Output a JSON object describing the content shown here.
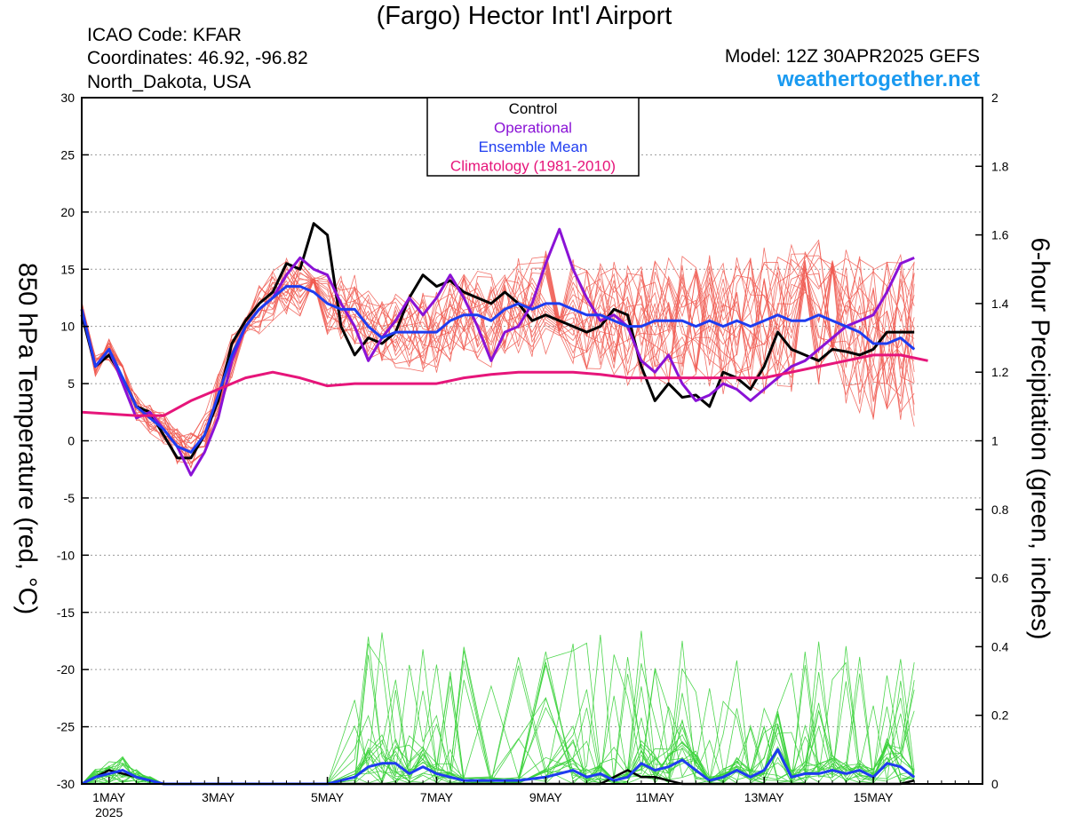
{
  "header": {
    "title": "(Fargo) Hector Int'l Airport",
    "icao": "ICAO Code: KFAR",
    "coords": "Coordinates: 46.92, -96.82",
    "region": "North_Dakota, USA",
    "model": "Model: 12Z 30APR2025 GEFS",
    "site": "weathertogether.net"
  },
  "colors": {
    "control": "#000000",
    "operational": "#8a12d6",
    "ensemble_mean": "#1e3cf0",
    "climatology": "#e6157a",
    "members_temp": "#f0584f",
    "members_precip": "#3ad23a",
    "site": "#1a9af0"
  },
  "chart_data": {
    "type": "line",
    "xlabel": "",
    "ylabel_left": "850 hPa Temperature (red, °C)",
    "ylabel_right": "6-hour Precipitation (green, inches)",
    "y_left_range": [
      -30,
      30
    ],
    "y_left_ticks": [
      "30",
      "25",
      "20",
      "15",
      "10",
      "5",
      "0",
      "-5",
      "-10",
      "-15",
      "-20",
      "-25",
      "-30"
    ],
    "y_right_range": [
      0,
      2
    ],
    "y_right_ticks": [
      "2",
      "1.8",
      "1.6",
      "1.4",
      "1.2",
      "1",
      "0.8",
      "0.6",
      "0.4",
      "0.2",
      "0"
    ],
    "x_range_days": [
      0,
      16.5
    ],
    "x_ticks": [
      {
        "day": 0.5,
        "label": "1MAY"
      },
      {
        "day": 2.5,
        "label": "3MAY"
      },
      {
        "day": 4.5,
        "label": "5MAY"
      },
      {
        "day": 6.5,
        "label": "7MAY"
      },
      {
        "day": 8.5,
        "label": "9MAY"
      },
      {
        "day": 10.5,
        "label": "11MAY"
      },
      {
        "day": 12.5,
        "label": "13MAY"
      },
      {
        "day": 14.5,
        "label": "15MAY"
      }
    ],
    "x_sublabel": "2025",
    "grid": true,
    "legend_position": "top-center",
    "legend": [
      {
        "label": "Control",
        "color": "#000000"
      },
      {
        "label": "Operational",
        "color": "#8a12d6"
      },
      {
        "label": "Ensemble Mean",
        "color": "#1e3cf0"
      },
      {
        "label": "Climatology (1981-2010)",
        "color": "#e6157a"
      }
    ],
    "series": [
      {
        "name": "Control",
        "axis": "left",
        "color": "#000000",
        "width": 3,
        "points": [
          [
            0,
            11
          ],
          [
            0.25,
            6.5
          ],
          [
            0.5,
            7.5
          ],
          [
            0.75,
            5.5
          ],
          [
            1,
            3
          ],
          [
            1.25,
            2.5
          ],
          [
            1.5,
            0.5
          ],
          [
            1.75,
            -1.5
          ],
          [
            2,
            -1.5
          ],
          [
            2.25,
            0.5
          ],
          [
            2.5,
            3.5
          ],
          [
            2.75,
            8.5
          ],
          [
            3,
            10.5
          ],
          [
            3.25,
            12
          ],
          [
            3.5,
            13
          ],
          [
            3.75,
            15.5
          ],
          [
            4,
            15
          ],
          [
            4.25,
            19
          ],
          [
            4.5,
            18
          ],
          [
            4.75,
            10
          ],
          [
            5,
            7.5
          ],
          [
            5.25,
            9
          ],
          [
            5.5,
            8.5
          ],
          [
            5.75,
            9.5
          ],
          [
            6,
            12.5
          ],
          [
            6.25,
            14.5
          ],
          [
            6.5,
            13.5
          ],
          [
            6.75,
            14
          ],
          [
            7,
            13
          ],
          [
            7.25,
            12.5
          ],
          [
            7.5,
            12
          ],
          [
            7.75,
            13
          ],
          [
            8,
            12
          ],
          [
            8.25,
            10.5
          ],
          [
            8.5,
            11
          ],
          [
            8.75,
            10.5
          ],
          [
            9,
            10
          ],
          [
            9.25,
            9.5
          ],
          [
            9.5,
            10
          ],
          [
            9.75,
            11.5
          ],
          [
            10,
            11
          ],
          [
            10.25,
            6.5
          ],
          [
            10.5,
            3.5
          ],
          [
            10.75,
            5
          ],
          [
            11,
            3.8
          ],
          [
            11.25,
            4
          ],
          [
            11.5,
            3
          ],
          [
            11.75,
            6
          ],
          [
            12,
            5.5
          ],
          [
            12.25,
            4.5
          ],
          [
            12.5,
            6.5
          ],
          [
            12.75,
            9.5
          ],
          [
            13,
            8
          ],
          [
            13.25,
            7.5
          ],
          [
            13.5,
            7
          ],
          [
            13.75,
            8
          ],
          [
            14,
            7.8
          ],
          [
            14.25,
            7.5
          ],
          [
            14.5,
            8
          ],
          [
            14.75,
            9.5
          ],
          [
            15,
            9.5
          ],
          [
            15.25,
            9.5
          ]
        ]
      },
      {
        "name": "Operational",
        "axis": "left",
        "color": "#8a12d6",
        "width": 3,
        "points": [
          [
            0,
            11.5
          ],
          [
            0.25,
            6.5
          ],
          [
            0.5,
            8
          ],
          [
            0.75,
            5
          ],
          [
            1,
            2
          ],
          [
            1.25,
            2.5
          ],
          [
            1.5,
            1
          ],
          [
            1.75,
            -0.5
          ],
          [
            2,
            -3
          ],
          [
            2.25,
            -1
          ],
          [
            2.5,
            2
          ],
          [
            2.75,
            7
          ],
          [
            3,
            10
          ],
          [
            3.25,
            11.5
          ],
          [
            3.5,
            12.5
          ],
          [
            3.75,
            14.5
          ],
          [
            4,
            16
          ],
          [
            4.25,
            15
          ],
          [
            4.5,
            14.5
          ],
          [
            4.75,
            12
          ],
          [
            5,
            10
          ],
          [
            5.25,
            7
          ],
          [
            5.5,
            9
          ],
          [
            5.75,
            10.5
          ],
          [
            6,
            12.5
          ],
          [
            6.25,
            11
          ],
          [
            6.5,
            12.5
          ],
          [
            6.75,
            14.5
          ],
          [
            7,
            12.5
          ],
          [
            7.25,
            10
          ],
          [
            7.5,
            7
          ],
          [
            7.75,
            9.5
          ],
          [
            8,
            10
          ],
          [
            8.25,
            12
          ],
          [
            8.5,
            15.5
          ],
          [
            8.75,
            18.5
          ],
          [
            9,
            15
          ],
          [
            9.25,
            12.5
          ],
          [
            9.5,
            10.5
          ],
          [
            9.75,
            11
          ],
          [
            10,
            10
          ],
          [
            10.25,
            7
          ],
          [
            10.5,
            6
          ],
          [
            10.75,
            7.5
          ],
          [
            11,
            5
          ],
          [
            11.25,
            3.5
          ],
          [
            11.5,
            4
          ],
          [
            11.75,
            5
          ],
          [
            12,
            4.5
          ],
          [
            12.25,
            3.5
          ],
          [
            12.5,
            4.5
          ],
          [
            12.75,
            5.5
          ],
          [
            13,
            6.5
          ],
          [
            13.25,
            7
          ],
          [
            13.5,
            8
          ],
          [
            13.75,
            9
          ],
          [
            14,
            10
          ],
          [
            14.25,
            10.5
          ],
          [
            14.5,
            11
          ],
          [
            14.75,
            13
          ],
          [
            15,
            15.5
          ],
          [
            15.25,
            16
          ]
        ]
      },
      {
        "name": "Ensemble Mean",
        "axis": "left",
        "color": "#1e3cf0",
        "width": 3,
        "points": [
          [
            0,
            11.5
          ],
          [
            0.25,
            6.5
          ],
          [
            0.5,
            8
          ],
          [
            0.75,
            5.5
          ],
          [
            1,
            3
          ],
          [
            1.25,
            2
          ],
          [
            1.5,
            1
          ],
          [
            1.75,
            -0.5
          ],
          [
            2,
            -1
          ],
          [
            2.25,
            0.5
          ],
          [
            2.5,
            4
          ],
          [
            2.75,
            7.5
          ],
          [
            3,
            10
          ],
          [
            3.25,
            11.5
          ],
          [
            3.5,
            12.5
          ],
          [
            3.75,
            13.5
          ],
          [
            4,
            13.5
          ],
          [
            4.25,
            13
          ],
          [
            4.5,
            12
          ],
          [
            4.75,
            11.5
          ],
          [
            5,
            11.5
          ],
          [
            5.25,
            10
          ],
          [
            5.5,
            9
          ],
          [
            5.75,
            9.5
          ],
          [
            6,
            9.5
          ],
          [
            6.25,
            9.5
          ],
          [
            6.5,
            9.5
          ],
          [
            6.75,
            10.5
          ],
          [
            7,
            11
          ],
          [
            7.25,
            11
          ],
          [
            7.5,
            10.5
          ],
          [
            7.75,
            11.5
          ],
          [
            8,
            12
          ],
          [
            8.25,
            11.5
          ],
          [
            8.5,
            12
          ],
          [
            8.75,
            12
          ],
          [
            9,
            11.5
          ],
          [
            9.25,
            11
          ],
          [
            9.5,
            11
          ],
          [
            9.75,
            10.5
          ],
          [
            10,
            10
          ],
          [
            10.25,
            10
          ],
          [
            10.5,
            10.5
          ],
          [
            10.75,
            10.5
          ],
          [
            11,
            10.5
          ],
          [
            11.25,
            10
          ],
          [
            11.5,
            10.5
          ],
          [
            11.75,
            10
          ],
          [
            12,
            10.5
          ],
          [
            12.25,
            10
          ],
          [
            12.5,
            10.5
          ],
          [
            12.75,
            11
          ],
          [
            13,
            10.5
          ],
          [
            13.25,
            10.5
          ],
          [
            13.5,
            11
          ],
          [
            13.75,
            10.5
          ],
          [
            14,
            10
          ],
          [
            14.25,
            9.5
          ],
          [
            14.5,
            8.5
          ],
          [
            14.75,
            8.5
          ],
          [
            15,
            9
          ],
          [
            15.25,
            8
          ]
        ]
      },
      {
        "name": "Climatology (1981-2010)",
        "axis": "left",
        "color": "#e6157a",
        "width": 3,
        "points": [
          [
            0,
            2.5
          ],
          [
            1,
            2.2
          ],
          [
            1.5,
            2.2
          ],
          [
            2,
            3.5
          ],
          [
            2.5,
            4.5
          ],
          [
            3,
            5.5
          ],
          [
            3.5,
            6
          ],
          [
            4,
            5.5
          ],
          [
            4.5,
            4.8
          ],
          [
            5,
            5
          ],
          [
            5.5,
            5
          ],
          [
            6,
            5
          ],
          [
            6.5,
            5
          ],
          [
            7,
            5.5
          ],
          [
            7.5,
            5.8
          ],
          [
            8,
            6
          ],
          [
            8.5,
            6
          ],
          [
            9,
            6
          ],
          [
            9.5,
            5.8
          ],
          [
            10,
            5.5
          ],
          [
            10.5,
            5.5
          ],
          [
            11,
            5.5
          ],
          [
            11.5,
            5.5
          ],
          [
            12,
            5.5
          ],
          [
            12.5,
            5.5
          ],
          [
            13,
            6
          ],
          [
            13.5,
            6.5
          ],
          [
            14,
            7
          ],
          [
            14.5,
            7.5
          ],
          [
            15,
            7.5
          ],
          [
            15.5,
            7
          ]
        ]
      },
      {
        "name": "Control",
        "axis": "right",
        "color": "#000000",
        "width": 2.5,
        "points": [
          [
            0,
            0
          ],
          [
            0.5,
            0.04
          ],
          [
            1,
            0.02
          ],
          [
            1.5,
            0
          ],
          [
            2,
            0
          ],
          [
            3,
            0
          ],
          [
            4,
            0
          ],
          [
            5,
            0
          ],
          [
            5.5,
            0
          ],
          [
            6,
            0
          ],
          [
            7,
            0
          ],
          [
            8,
            0
          ],
          [
            8.5,
            0
          ],
          [
            9,
            0
          ],
          [
            9.5,
            0
          ],
          [
            10,
            0.04
          ],
          [
            10.25,
            0.02
          ],
          [
            10.5,
            0.02
          ],
          [
            11,
            0
          ],
          [
            12,
            0
          ],
          [
            13,
            0
          ],
          [
            14,
            0
          ],
          [
            15,
            0
          ],
          [
            15.25,
            0.01
          ]
        ]
      },
      {
        "name": "Ensemble Mean",
        "axis": "right",
        "color": "#1e3cf0",
        "width": 3,
        "points": [
          [
            0,
            0
          ],
          [
            0.25,
            0.02
          ],
          [
            0.5,
            0.03
          ],
          [
            0.75,
            0.04
          ],
          [
            1,
            0.02
          ],
          [
            1.25,
            0.01
          ],
          [
            1.5,
            0
          ],
          [
            2,
            0
          ],
          [
            3,
            0
          ],
          [
            4,
            0
          ],
          [
            4.5,
            0
          ],
          [
            5,
            0.02
          ],
          [
            5.25,
            0.05
          ],
          [
            5.5,
            0.06
          ],
          [
            5.75,
            0.06
          ],
          [
            6,
            0.03
          ],
          [
            6.25,
            0.05
          ],
          [
            6.5,
            0.03
          ],
          [
            6.75,
            0.02
          ],
          [
            7,
            0.01
          ],
          [
            7.5,
            0.01
          ],
          [
            8,
            0.01
          ],
          [
            8.5,
            0.02
          ],
          [
            9,
            0.04
          ],
          [
            9.25,
            0.02
          ],
          [
            9.5,
            0.03
          ],
          [
            9.75,
            0.01
          ],
          [
            10,
            0.02
          ],
          [
            10.25,
            0.06
          ],
          [
            10.5,
            0.04
          ],
          [
            10.75,
            0.05
          ],
          [
            11,
            0.07
          ],
          [
            11.25,
            0.04
          ],
          [
            11.5,
            0.01
          ],
          [
            11.75,
            0.02
          ],
          [
            12,
            0.04
          ],
          [
            12.25,
            0.02
          ],
          [
            12.5,
            0.04
          ],
          [
            12.75,
            0.1
          ],
          [
            13,
            0.02
          ],
          [
            13.25,
            0.03
          ],
          [
            13.5,
            0.03
          ],
          [
            13.75,
            0.04
          ],
          [
            14,
            0.03
          ],
          [
            14.25,
            0.04
          ],
          [
            14.5,
            0.02
          ],
          [
            14.75,
            0.06
          ],
          [
            15,
            0.05
          ],
          [
            15.25,
            0.02
          ]
        ]
      }
    ]
  }
}
